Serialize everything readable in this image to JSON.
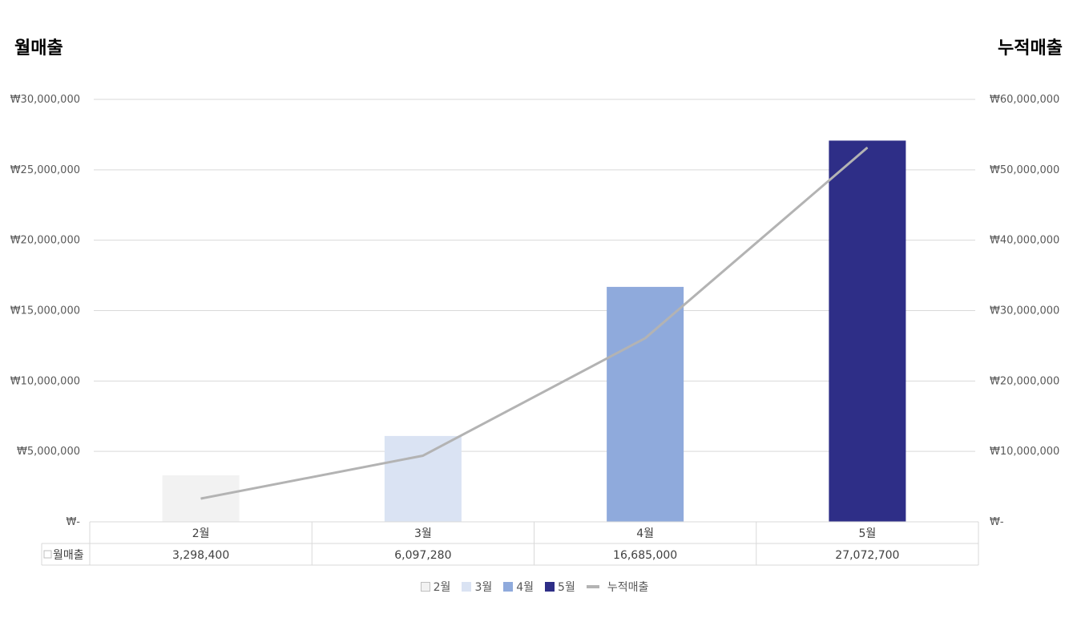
{
  "chart_data": {
    "type": "bar",
    "left_axis_title": "월매출",
    "right_axis_title": "누적매출",
    "categories": [
      "2월",
      "3월",
      "4월",
      "5월"
    ],
    "bar_series": {
      "name": "월매출",
      "values": [
        3298400,
        6097280,
        16685000,
        27072700
      ],
      "value_labels": [
        "3,298,400",
        "6,097,280",
        "16,685,000",
        "27,072,700"
      ],
      "colors": [
        "#f2f2f2",
        "#dae3f3",
        "#8faadc",
        "#2e2e87"
      ]
    },
    "line_series": {
      "name": "누적매출",
      "values": [
        3298400,
        9395680,
        26080680,
        53153380
      ],
      "color": "#b3b3b3",
      "axis": "right"
    },
    "left_axis": {
      "ylim": [
        0,
        30000000
      ],
      "ticks": [
        0,
        5000000,
        10000000,
        15000000,
        20000000,
        25000000,
        30000000
      ],
      "tick_labels": [
        "₩-",
        "₩5,000,000",
        "₩10,000,000",
        "₩15,000,000",
        "₩20,000,000",
        "₩25,000,000",
        "₩30,000,000"
      ]
    },
    "right_axis": {
      "ylim": [
        0,
        60000000
      ],
      "ticks": [
        0,
        10000000,
        20000000,
        30000000,
        40000000,
        50000000,
        60000000
      ],
      "tick_labels": [
        "₩-",
        "₩10,000,000",
        "₩20,000,000",
        "₩30,000,000",
        "₩40,000,000",
        "₩50,000,000",
        "₩60,000,000"
      ]
    },
    "data_table": {
      "row_header": "월매출"
    },
    "legend": {
      "position": "bottom",
      "items": [
        {
          "label": "2월",
          "color": "#f2f2f2"
        },
        {
          "label": "3월",
          "color": "#dae3f3"
        },
        {
          "label": "4월",
          "color": "#8faadc"
        },
        {
          "label": "5월",
          "color": "#2e2e87"
        },
        {
          "label": "누적매출",
          "color": "#b3b3b3",
          "kind": "line"
        }
      ]
    },
    "grid": true
  }
}
